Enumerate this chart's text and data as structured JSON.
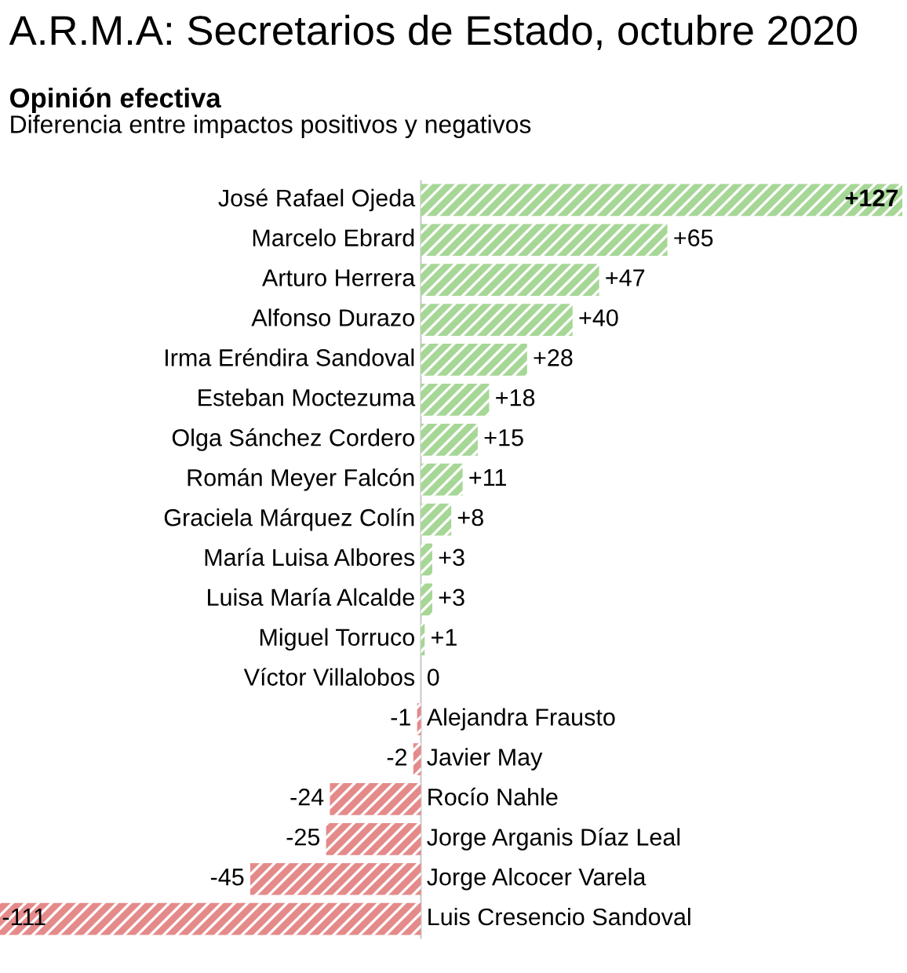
{
  "chart_data": {
    "type": "bar",
    "orientation": "horizontal",
    "title": "A.R.M.A: Secretarios de Estado, octubre 2020",
    "subtitle": "Opinión efectiva",
    "annotations": [
      "Diferencia entre impactos positivos y negativos"
    ],
    "categories": [
      "José Rafael Ojeda",
      "Marcelo Ebrard",
      "Arturo Herrera",
      "Alfonso Durazo",
      "Irma Eréndira Sandoval",
      "Esteban Moctezuma",
      "Olga Sánchez Cordero",
      "Román Meyer Falcón",
      "Graciela Márquez Colín",
      "María Luisa Albores",
      "Luisa María Alcalde",
      "Miguel Torruco",
      "Víctor Villalobos",
      "Alejandra Frausto",
      "Javier May",
      "Rocío Nahle",
      "Jorge Arganis Díaz Leal",
      "Jorge Alcocer Varela",
      "Luis Cresencio Sandoval"
    ],
    "values": [
      127,
      65,
      47,
      40,
      28,
      18,
      15,
      11,
      8,
      3,
      3,
      1,
      0,
      -1,
      -2,
      -24,
      -25,
      -45,
      -111
    ],
    "value_labels": [
      "+127",
      "+65",
      "+47",
      "+40",
      "+28",
      "+18",
      "+15",
      "+11",
      "+8",
      "+3",
      "+3",
      "+1",
      "0",
      "-1",
      "-2",
      "-24",
      "-25",
      "-45",
      "-111"
    ],
    "colors": [
      "#a6d796",
      "#a6d796",
      "#a6d796",
      "#a6d796",
      "#a6d796",
      "#a6d796",
      "#a6d796",
      "#a6d796",
      "#a6d796",
      "#a6d796",
      "#a6d796",
      "#a6d796",
      "#a6d796",
      "#e58a8a",
      "#e58a8a",
      "#e58a8a",
      "#e58a8a",
      "#e58a8a",
      "#e58a8a"
    ],
    "legend": false
  }
}
